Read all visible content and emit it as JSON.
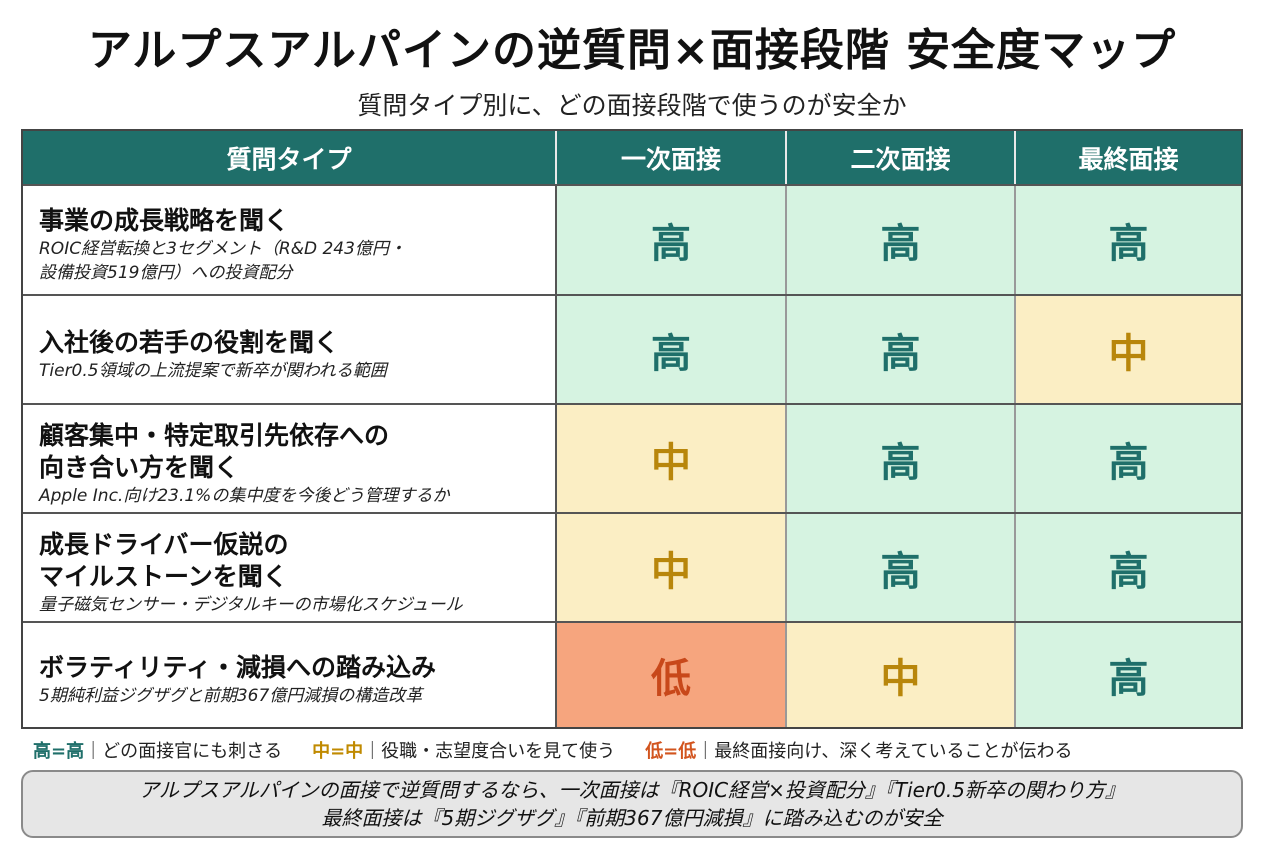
{
  "title": "アルプスアルパインの逆質問×面接段階 安全度マップ",
  "subtitle": "質問タイプ別に、どの面接段階で使うのが安全か",
  "table": {
    "headers": [
      "質問タイプ",
      "一次面接",
      "二次面接",
      "最終面接"
    ],
    "rows": [
      {
        "title": "事業の成長戦略を聞く",
        "note": "ROIC経営転換と3セグメント（R&D 243億円・\n設備投資519億円）への投資配分",
        "levels": [
          "高",
          "高",
          "高"
        ]
      },
      {
        "title": "入社後の若手の役割を聞く",
        "note": "Tier0.5領域の上流提案で新卒が関われる範囲",
        "levels": [
          "高",
          "高",
          "中"
        ]
      },
      {
        "title": "顧客集中・特定取引先依存への\n向き合い方を聞く",
        "note": "Apple Inc.向け23.1%の集中度を今後どう管理するか",
        "levels": [
          "中",
          "高",
          "高"
        ]
      },
      {
        "title": "成長ドライバー仮説の\nマイルストーンを聞く",
        "note": "量子磁気センサー・デジタルキーの市場化スケジュール",
        "levels": [
          "中",
          "高",
          "高"
        ]
      },
      {
        "title": "ボラティリティ・減損への踏み込み",
        "note": "5期純利益ジグザグと前期367億円減損の構造改革",
        "levels": [
          "低",
          "中",
          "高"
        ]
      }
    ]
  },
  "legend": {
    "high_key": "高=高",
    "high_desc": "｜どの面接官にも刺さる",
    "mid_key": "中=中",
    "mid_desc": "｜役職・志望度合いを見て使う",
    "low_key": "低=低",
    "low_desc": "｜最終面接向け、深く考えていることが伝わる"
  },
  "summary": {
    "line1": "アルプスアルパインの面接で逆質問するなら、一次面接は『ROIC経営×投資配分』『Tier0.5新卒の関わり方』",
    "line2": "最終面接は『5期ジグザグ』『前期367億円減損』に踏み込むのが安全"
  },
  "colors": {
    "header": "#1f6f6a",
    "high_bg": "#d6f3e1",
    "mid_bg": "#fbeec4",
    "low_bg": "#f6a57e"
  }
}
